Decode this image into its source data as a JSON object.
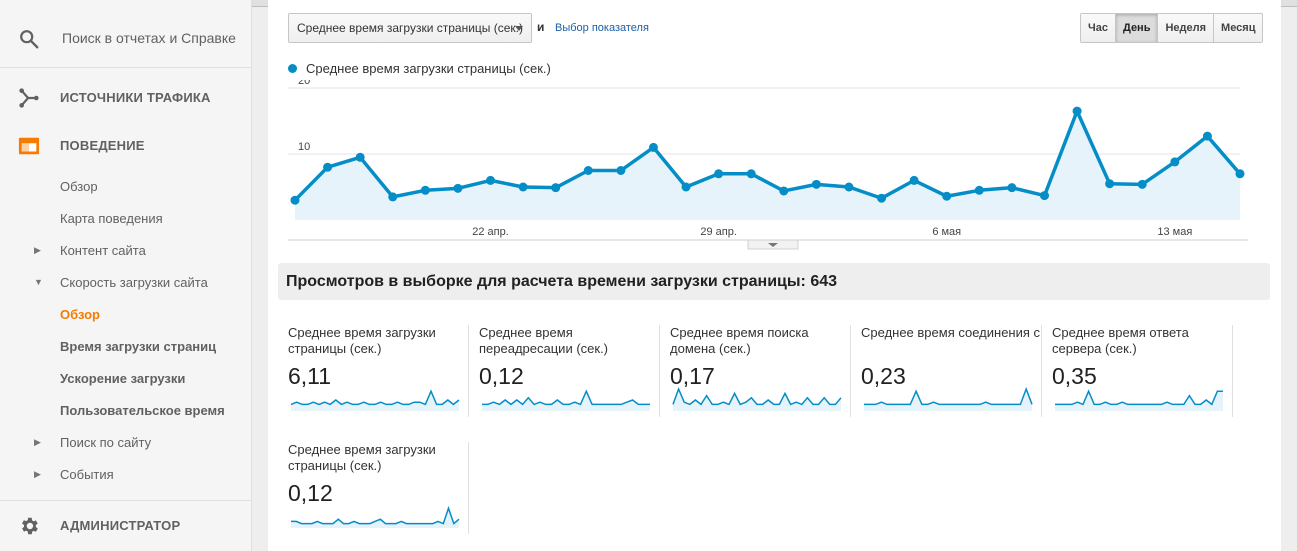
{
  "sidebar": {
    "search_placeholder": "Поиск в отчетах и Справке",
    "traffic_sources": "ИСТОЧНИКИ ТРАФИКА",
    "behavior": "ПОВЕДЕНИЕ",
    "items": [
      {
        "label": "Обзор"
      },
      {
        "label": "Карта поведения"
      },
      {
        "label": "Контент сайта"
      },
      {
        "label": "Скорость загрузки сайта"
      },
      {
        "label": "Обзор"
      },
      {
        "label": "Время загрузки страниц"
      },
      {
        "label": "Ускорение загрузки"
      },
      {
        "label": "Пользовательское время"
      },
      {
        "label": "Поиск по сайту"
      },
      {
        "label": "События"
      }
    ],
    "admin": "АДМИНИСТРАТОР"
  },
  "toolbar": {
    "metric": "Среднее время загрузки страницы (сек.)",
    "and": "и",
    "choose_metric": "Выбор показателя",
    "periods": [
      "Час",
      "День",
      "Неделя",
      "Месяц"
    ],
    "selected_period": "День"
  },
  "colors": {
    "accent": "#058dc7",
    "area_fill": "#e6f3fa",
    "current_item": "#f57c00"
  },
  "chart_data": {
    "type": "line",
    "title": "",
    "series": [
      {
        "name": "Среднее время загрузки страницы (сек.)",
        "values": [
          3,
          8,
          9.5,
          3.5,
          4.5,
          4.8,
          6,
          5,
          4.9,
          7.5,
          7.5,
          11,
          5,
          7,
          7,
          4.4,
          5.4,
          5,
          3.3,
          6,
          3.6,
          4.5,
          4.9,
          3.7,
          16.5,
          5.5,
          5.4,
          8.8,
          12.7,
          7
        ]
      }
    ],
    "x_tick_labels": [
      {
        "index": 6,
        "label": "22 апр."
      },
      {
        "index": 13,
        "label": "29 апр."
      },
      {
        "index": 20,
        "label": "6 мая"
      },
      {
        "index": 27,
        "label": "13 мая"
      }
    ],
    "y_ticks": [
      10,
      20
    ],
    "ylim": [
      0,
      20
    ],
    "grid": true
  },
  "summary": {
    "title": "Просмотров в выборке для расчета времени загрузки страницы: 643"
  },
  "cards": [
    {
      "name": "Среднее время загрузки страницы (сек.)",
      "value": "6,11",
      "spark": [
        3,
        4,
        3,
        3,
        4,
        3,
        4,
        3,
        5,
        3,
        4,
        3,
        3,
        4,
        3,
        3,
        4,
        3,
        3,
        4,
        3,
        3,
        4,
        4,
        3,
        9,
        3,
        3,
        5,
        3,
        5
      ]
    },
    {
      "name": "Среднее время переадресации (сек.)",
      "value": "0,12",
      "spark": [
        3,
        3,
        4,
        3,
        5,
        3,
        5,
        3,
        6,
        3,
        4,
        3,
        3,
        5,
        3,
        3,
        4,
        3,
        9,
        3,
        3,
        3,
        3,
        3,
        3,
        4,
        5,
        3,
        3,
        3
      ]
    },
    {
      "name": "Среднее время поиска домена (сек.)",
      "value": "0,17",
      "spark": [
        3,
        10,
        4,
        3,
        5,
        3,
        7,
        3,
        3,
        4,
        3,
        8,
        3,
        4,
        6,
        3,
        3,
        5,
        3,
        3,
        8,
        3,
        4,
        3,
        6,
        3,
        3,
        6,
        3,
        3,
        6
      ]
    },
    {
      "name": "Среднее время соединения с сервером (сек.)",
      "value": "0,23",
      "spark": [
        3,
        3,
        3,
        4,
        3,
        3,
        3,
        3,
        3,
        9,
        3,
        3,
        4,
        3,
        3,
        3,
        3,
        3,
        3,
        3,
        3,
        4,
        3,
        3,
        3,
        3,
        3,
        3,
        10,
        3
      ]
    },
    {
      "name": "Среднее время ответа сервера (сек.)",
      "value": "0,35",
      "spark": [
        3,
        3,
        3,
        3,
        4,
        3,
        9,
        3,
        3,
        4,
        3,
        3,
        4,
        3,
        3,
        3,
        3,
        3,
        3,
        3,
        4,
        3,
        3,
        3,
        7,
        3,
        3,
        5,
        3,
        9,
        9
      ]
    },
    {
      "name": "Среднее время загрузки страницы (сек.)",
      "value": "0,12",
      "spark": [
        3,
        3,
        2,
        2,
        2,
        3,
        2,
        2,
        2,
        4,
        2,
        2,
        3,
        2,
        2,
        2,
        3,
        4,
        2,
        2,
        2,
        3,
        2,
        2,
        2,
        2,
        2,
        2,
        3,
        2,
        9,
        2,
        4
      ]
    }
  ]
}
